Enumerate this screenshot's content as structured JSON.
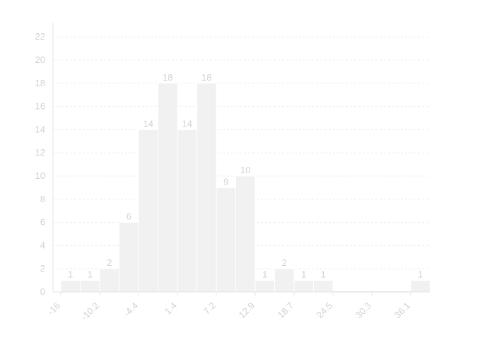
{
  "chart_data": {
    "type": "bar",
    "title": "",
    "xlabel": "",
    "ylabel": "",
    "ylim": [
      0,
      23
    ],
    "y_ticks": [
      0,
      2,
      4,
      6,
      8,
      10,
      12,
      14,
      16,
      18,
      20,
      22
    ],
    "x_tick_labels": [
      "-16",
      "-10.2",
      "-4.4",
      "1.4",
      "7.2",
      "12.9",
      "18.7",
      "24.5",
      "30.3",
      "36.1"
    ],
    "bins_start": -16,
    "bin_width": 2.9,
    "values": [
      1,
      1,
      2,
      6,
      14,
      18,
      14,
      18,
      9,
      10,
      1,
      2,
      1,
      1,
      0,
      0,
      0,
      0,
      1
    ],
    "grid": true,
    "legend": "none",
    "colors": {
      "bar": "#f1f1f1",
      "text": "#d2d2d2",
      "grid": "#ececec"
    }
  }
}
